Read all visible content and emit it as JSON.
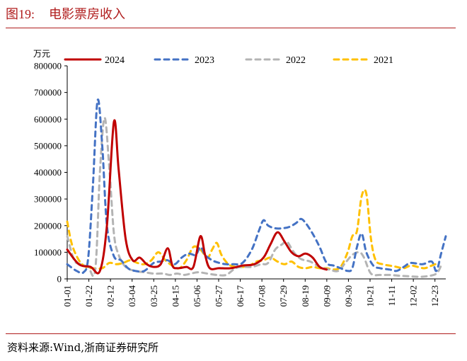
{
  "figure": {
    "title_prefix": "图19:",
    "title": "电影票房收入",
    "source": "资料来源:Wind,浙商证券研究所"
  },
  "chart_data": {
    "type": "line",
    "unit_label": "万元",
    "ylim": [
      0,
      800000
    ],
    "yticks": [
      "800000",
      "700000",
      "600000",
      "500000",
      "400000",
      "300000",
      "200000",
      "100000",
      "0"
    ],
    "x_tick_labels": [
      "01-01",
      "01-22",
      "02-12",
      "03-04",
      "03-25",
      "04-15",
      "05-06",
      "05-27",
      "06-17",
      "07-08",
      "07-29",
      "08-19",
      "09-09",
      "09-30",
      "10-21",
      "11-11",
      "12-02",
      "12-23"
    ],
    "legend_position": "top",
    "series": [
      {
        "name": "2024",
        "color": "#c00000",
        "dash": "solid",
        "points": [
          [
            0,
            110000
          ],
          [
            5,
            55000
          ],
          [
            10,
            45000
          ],
          [
            14,
            30000
          ],
          [
            17,
            200000
          ],
          [
            20,
            590000
          ],
          [
            22,
            410000
          ],
          [
            25,
            150000
          ],
          [
            28,
            70000
          ],
          [
            31,
            80000
          ],
          [
            34,
            55000
          ],
          [
            37,
            45000
          ],
          [
            40,
            55000
          ],
          [
            43,
            115000
          ],
          [
            45,
            50000
          ],
          [
            47,
            40000
          ],
          [
            51,
            45000
          ],
          [
            54,
            45000
          ],
          [
            57,
            160000
          ],
          [
            59,
            90000
          ],
          [
            61,
            40000
          ],
          [
            65,
            40000
          ],
          [
            70,
            40000
          ],
          [
            75,
            50000
          ],
          [
            80,
            55000
          ],
          [
            84,
            80000
          ],
          [
            87,
            130000
          ],
          [
            90,
            175000
          ],
          [
            93,
            140000
          ],
          [
            96,
            100000
          ],
          [
            99,
            85000
          ],
          [
            102,
            95000
          ],
          [
            105,
            80000
          ],
          [
            108,
            45000
          ],
          [
            111,
            35000
          ]
        ]
      },
      {
        "name": "2023",
        "color": "#4472c4",
        "dash": "dashed",
        "points": [
          [
            0,
            55000
          ],
          [
            4,
            30000
          ],
          [
            7,
            25000
          ],
          [
            9,
            80000
          ],
          [
            11,
            350000
          ],
          [
            13,
            670000
          ],
          [
            15,
            500000
          ],
          [
            17,
            200000
          ],
          [
            20,
            85000
          ],
          [
            23,
            70000
          ],
          [
            26,
            40000
          ],
          [
            29,
            30000
          ],
          [
            33,
            30000
          ],
          [
            37,
            60000
          ],
          [
            40,
            65000
          ],
          [
            43,
            70000
          ],
          [
            46,
            55000
          ],
          [
            49,
            80000
          ],
          [
            52,
            95000
          ],
          [
            55,
            90000
          ],
          [
            57,
            120000
          ],
          [
            59,
            90000
          ],
          [
            62,
            70000
          ],
          [
            65,
            60000
          ],
          [
            68,
            55000
          ],
          [
            71,
            55000
          ],
          [
            75,
            60000
          ],
          [
            79,
            110000
          ],
          [
            82,
            180000
          ],
          [
            84,
            220000
          ],
          [
            86,
            200000
          ],
          [
            89,
            190000
          ],
          [
            92,
            190000
          ],
          [
            95,
            195000
          ],
          [
            98,
            210000
          ],
          [
            100,
            225000
          ],
          [
            102,
            210000
          ],
          [
            105,
            170000
          ],
          [
            108,
            120000
          ],
          [
            111,
            60000
          ],
          [
            114,
            50000
          ],
          [
            117,
            40000
          ],
          [
            120,
            30000
          ],
          [
            122,
            40000
          ],
          [
            124,
            120000
          ],
          [
            126,
            170000
          ],
          [
            128,
            100000
          ],
          [
            131,
            50000
          ],
          [
            134,
            40000
          ],
          [
            138,
            35000
          ],
          [
            141,
            30000
          ],
          [
            144,
            45000
          ],
          [
            147,
            60000
          ],
          [
            152,
            55000
          ],
          [
            156,
            65000
          ],
          [
            158,
            30000
          ],
          [
            160,
            95000
          ],
          [
            162,
            160000
          ]
        ]
      },
      {
        "name": "2022",
        "color": "#b4b4b4",
        "dash": "dashed",
        "points": [
          [
            0,
            160000
          ],
          [
            3,
            70000
          ],
          [
            6,
            55000
          ],
          [
            9,
            45000
          ],
          [
            12,
            35000
          ],
          [
            14,
            400000
          ],
          [
            16,
            605000
          ],
          [
            18,
            420000
          ],
          [
            20,
            170000
          ],
          [
            22,
            90000
          ],
          [
            25,
            45000
          ],
          [
            29,
            30000
          ],
          [
            33,
            25000
          ],
          [
            37,
            20000
          ],
          [
            41,
            20000
          ],
          [
            44,
            15000
          ],
          [
            47,
            20000
          ],
          [
            50,
            15000
          ],
          [
            53,
            20000
          ],
          [
            56,
            25000
          ],
          [
            60,
            20000
          ],
          [
            64,
            15000
          ],
          [
            68,
            15000
          ],
          [
            72,
            40000
          ],
          [
            75,
            45000
          ],
          [
            79,
            45000
          ],
          [
            83,
            55000
          ],
          [
            86,
            60000
          ],
          [
            89,
            110000
          ],
          [
            92,
            130000
          ],
          [
            94,
            140000
          ],
          [
            97,
            100000
          ],
          [
            100,
            75000
          ],
          [
            104,
            65000
          ],
          [
            108,
            45000
          ],
          [
            112,
            35000
          ],
          [
            116,
            30000
          ],
          [
            119,
            60000
          ],
          [
            122,
            90000
          ],
          [
            125,
            100000
          ],
          [
            127,
            80000
          ],
          [
            130,
            20000
          ],
          [
            134,
            15000
          ],
          [
            138,
            15000
          ],
          [
            142,
            12000
          ],
          [
            146,
            10000
          ],
          [
            150,
            8000
          ],
          [
            154,
            10000
          ],
          [
            158,
            20000
          ],
          [
            160,
            50000
          ]
        ]
      },
      {
        "name": "2021",
        "color": "#ffc000",
        "dash": "dashed",
        "points": [
          [
            0,
            215000
          ],
          [
            2,
            130000
          ],
          [
            5,
            70000
          ],
          [
            8,
            45000
          ],
          [
            11,
            40000
          ],
          [
            15,
            40000
          ],
          [
            18,
            60000
          ],
          [
            21,
            55000
          ],
          [
            24,
            60000
          ],
          [
            27,
            70000
          ],
          [
            30,
            60000
          ],
          [
            33,
            55000
          ],
          [
            36,
            70000
          ],
          [
            39,
            100000
          ],
          [
            42,
            70000
          ],
          [
            45,
            50000
          ],
          [
            48,
            40000
          ],
          [
            51,
            70000
          ],
          [
            54,
            120000
          ],
          [
            57,
            110000
          ],
          [
            60,
            80000
          ],
          [
            62,
            110000
          ],
          [
            64,
            135000
          ],
          [
            66,
            90000
          ],
          [
            69,
            55000
          ],
          [
            72,
            45000
          ],
          [
            75,
            45000
          ],
          [
            78,
            50000
          ],
          [
            81,
            65000
          ],
          [
            84,
            70000
          ],
          [
            87,
            80000
          ],
          [
            90,
            65000
          ],
          [
            93,
            55000
          ],
          [
            96,
            65000
          ],
          [
            99,
            45000
          ],
          [
            102,
            40000
          ],
          [
            105,
            45000
          ],
          [
            108,
            40000
          ],
          [
            111,
            40000
          ],
          [
            114,
            35000
          ],
          [
            117,
            45000
          ],
          [
            120,
            100000
          ],
          [
            122,
            160000
          ],
          [
            124,
            180000
          ],
          [
            126,
            310000
          ],
          [
            128,
            320000
          ],
          [
            130,
            150000
          ],
          [
            132,
            70000
          ],
          [
            135,
            55000
          ],
          [
            138,
            50000
          ],
          [
            141,
            45000
          ],
          [
            144,
            40000
          ],
          [
            147,
            50000
          ],
          [
            150,
            45000
          ],
          [
            153,
            40000
          ],
          [
            156,
            50000
          ],
          [
            159,
            60000
          ]
        ]
      }
    ]
  }
}
